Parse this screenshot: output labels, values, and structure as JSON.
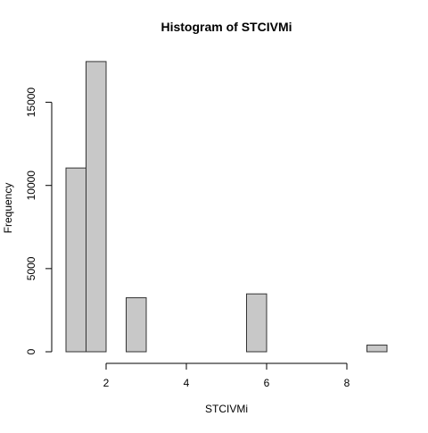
{
  "chart_data": {
    "type": "bar",
    "title": "Histogram of STCIVMi",
    "xlabel": "STCIVMi",
    "ylabel": "Frequency",
    "bin_width": 0.5,
    "bins": [
      {
        "start": 1.0,
        "end": 1.5,
        "count": 11050
      },
      {
        "start": 1.5,
        "end": 2.0,
        "count": 17450
      },
      {
        "start": 2.0,
        "end": 2.5,
        "count": 0
      },
      {
        "start": 2.5,
        "end": 3.0,
        "count": 3250
      },
      {
        "start": 3.0,
        "end": 3.5,
        "count": 0
      },
      {
        "start": 3.5,
        "end": 4.0,
        "count": 0
      },
      {
        "start": 4.0,
        "end": 4.5,
        "count": 0
      },
      {
        "start": 4.5,
        "end": 5.0,
        "count": 0
      },
      {
        "start": 5.0,
        "end": 5.5,
        "count": 0
      },
      {
        "start": 5.5,
        "end": 6.0,
        "count": 3480
      },
      {
        "start": 6.0,
        "end": 6.5,
        "count": 0
      },
      {
        "start": 6.5,
        "end": 7.0,
        "count": 0
      },
      {
        "start": 7.0,
        "end": 7.5,
        "count": 0
      },
      {
        "start": 7.5,
        "end": 8.0,
        "count": 0
      },
      {
        "start": 8.0,
        "end": 8.5,
        "count": 0
      },
      {
        "start": 8.5,
        "end": 9.0,
        "count": 400
      }
    ],
    "xlim": [
      1.0,
      9.0
    ],
    "ylim": [
      0,
      17500
    ],
    "x_ticks": [
      2,
      4,
      6,
      8
    ],
    "y_ticks": [
      0,
      5000,
      10000,
      15000
    ],
    "bar_fill": "#c8c8c8",
    "bar_stroke": "#333333",
    "grid": false
  }
}
